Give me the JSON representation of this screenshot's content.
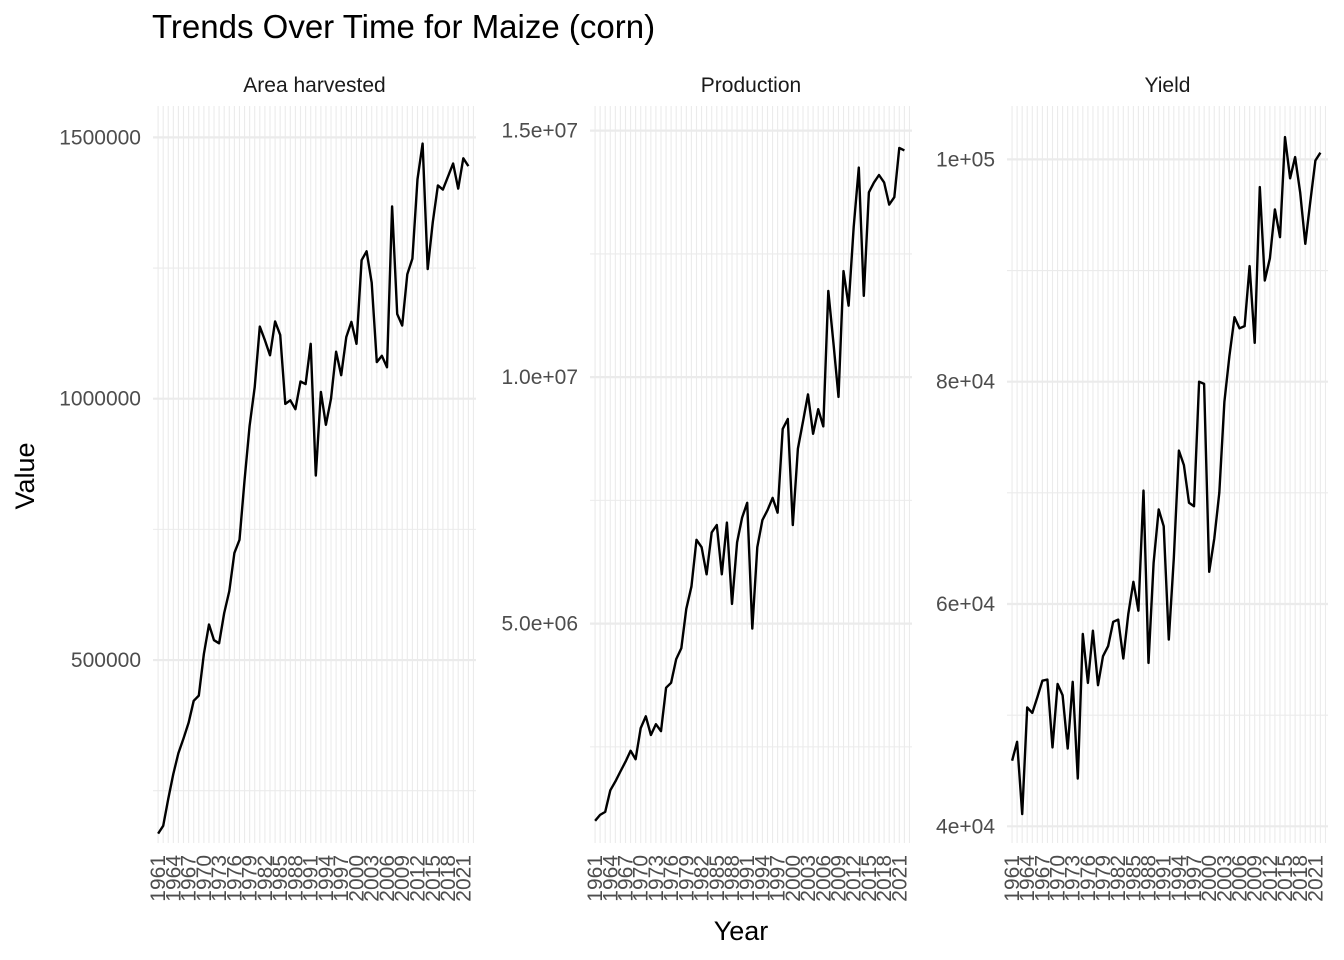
{
  "chart_data": {
    "type": "line",
    "title": "Trends Over Time for Maize (corn)",
    "xlabel": "Year",
    "ylabel": "Value",
    "x_tick_labels": [
      "1961",
      "1964",
      "1967",
      "1970",
      "1973",
      "1976",
      "1979",
      "1982",
      "1985",
      "1988",
      "1991",
      "1994",
      "1997",
      "2000",
      "2003",
      "2006",
      "2009",
      "2012",
      "2015",
      "2018",
      "2021"
    ],
    "grid": true,
    "facets": [
      {
        "name": "Area harvested",
        "ylim": [
          150000,
          1560000
        ],
        "y_ticks": [
          500000,
          1000000,
          1500000
        ],
        "y_minor_ticks": [
          250000,
          750000,
          1250000
        ],
        "y_tick_labels": [
          "500000",
          "1000000",
          "1500000"
        ],
        "x": [
          1961,
          1962,
          1963,
          1964,
          1965,
          1966,
          1967,
          1968,
          1969,
          1970,
          1971,
          1972,
          1973,
          1974,
          1975,
          1976,
          1977,
          1978,
          1979,
          1980,
          1981,
          1982,
          1983,
          1984,
          1985,
          1986,
          1987,
          1988,
          1989,
          1990,
          1991,
          1992,
          1993,
          1994,
          1995,
          1996,
          1997,
          1998,
          1999,
          2000,
          2001,
          2002,
          2003,
          2004,
          2005,
          2006,
          2007,
          2008,
          2009,
          2010,
          2011,
          2012,
          2013,
          2014,
          2015,
          2016,
          2017,
          2018,
          2019,
          2020,
          2021,
          2022,
          2023
        ],
        "values": [
          168000,
          183000,
          235000,
          282000,
          322000,
          350000,
          380000,
          422000,
          432000,
          512000,
          568000,
          538000,
          532000,
          590000,
          632000,
          705000,
          730000,
          845000,
          948000,
          1022000,
          1138000,
          1112000,
          1083000,
          1148000,
          1122000,
          990000,
          997000,
          980000,
          1033000,
          1028000,
          1105000,
          853000,
          1013000,
          950000,
          1000000,
          1090000,
          1045000,
          1118000,
          1147000,
          1105000,
          1265000,
          1282000,
          1222000,
          1070000,
          1082000,
          1060000,
          1368000,
          1162000,
          1140000,
          1238000,
          1268000,
          1420000,
          1488000,
          1248000,
          1338000,
          1408000,
          1400000,
          1425000,
          1450000,
          1402000,
          1460000,
          1445000,
          null
        ]
      },
      {
        "name": "Production",
        "ylim": [
          550000,
          15500000
        ],
        "y_ticks": [
          5000000,
          10000000,
          15000000
        ],
        "y_minor_ticks": [
          2500000,
          7500000,
          12500000
        ],
        "y_tick_labels": [
          "5.0e+06",
          "1.0e+07",
          "1.5e+07"
        ],
        "x": [
          1961,
          1962,
          1963,
          1964,
          1965,
          1966,
          1967,
          1968,
          1969,
          1970,
          1971,
          1972,
          1973,
          1974,
          1975,
          1976,
          1977,
          1978,
          1979,
          1980,
          1981,
          1982,
          1983,
          1984,
          1985,
          1986,
          1987,
          1988,
          1989,
          1990,
          1991,
          1992,
          1993,
          1994,
          1995,
          1996,
          1997,
          1998,
          1999,
          2000,
          2001,
          2002,
          2003,
          2004,
          2005,
          2006,
          2007,
          2008,
          2009,
          2010,
          2011,
          2012,
          2013,
          2014,
          2015,
          2016,
          2017,
          2018,
          2019,
          2020,
          2021,
          2022,
          2023
        ],
        "values": [
          1000000,
          1120000,
          1180000,
          1620000,
          1800000,
          2000000,
          2200000,
          2420000,
          2250000,
          2880000,
          3120000,
          2740000,
          2960000,
          2820000,
          3700000,
          3800000,
          4280000,
          4500000,
          5300000,
          5750000,
          6700000,
          6550000,
          6000000,
          6850000,
          7000000,
          6000000,
          7050000,
          5400000,
          6650000,
          7150000,
          7450000,
          4900000,
          6550000,
          7100000,
          7300000,
          7550000,
          7250000,
          8950000,
          9150000,
          7000000,
          8550000,
          9100000,
          9650000,
          8850000,
          9350000,
          9000000,
          11750000,
          10700000,
          9600000,
          12150000,
          11450000,
          13050000,
          14250000,
          11650000,
          13750000,
          13950000,
          14100000,
          13950000,
          13500000,
          13650000,
          14650000,
          14600000,
          null
        ]
      },
      {
        "name": "Yield",
        "ylim": [
          38500,
          104800
        ],
        "y_ticks": [
          40000,
          60000,
          80000,
          100000
        ],
        "y_minor_ticks": [
          50000,
          70000,
          90000
        ],
        "y_tick_labels": [
          "4e+04",
          "6e+04",
          "8e+04",
          "1e+05"
        ],
        "x": [
          1961,
          1962,
          1963,
          1964,
          1965,
          1966,
          1967,
          1968,
          1969,
          1970,
          1971,
          1972,
          1973,
          1974,
          1975,
          1976,
          1977,
          1978,
          1979,
          1980,
          1981,
          1982,
          1983,
          1984,
          1985,
          1986,
          1987,
          1988,
          1989,
          1990,
          1991,
          1992,
          1993,
          1994,
          1995,
          1996,
          1997,
          1998,
          1999,
          2000,
          2001,
          2002,
          2003,
          2004,
          2005,
          2006,
          2007,
          2008,
          2009,
          2010,
          2011,
          2012,
          2013,
          2014,
          2015,
          2016,
          2017,
          2018,
          2019,
          2020,
          2021,
          2022,
          2023
        ],
        "values": [
          45900,
          47600,
          41100,
          50700,
          50200,
          51600,
          53100,
          53200,
          47100,
          52800,
          51800,
          47000,
          53000,
          44300,
          57300,
          52900,
          57600,
          52700,
          55300,
          56200,
          58400,
          58600,
          55100,
          59100,
          62000,
          59400,
          70200,
          54700,
          63700,
          68500,
          67000,
          56800,
          64100,
          73800,
          72500,
          69100,
          68800,
          80000,
          79800,
          62900,
          65900,
          70000,
          78200,
          82300,
          85800,
          84800,
          85000,
          90400,
          83500,
          97500,
          89100,
          91100,
          95500,
          93000,
          102000,
          98300,
          100200,
          97000,
          92400,
          96200,
          99900,
          100600,
          null
        ]
      }
    ]
  }
}
